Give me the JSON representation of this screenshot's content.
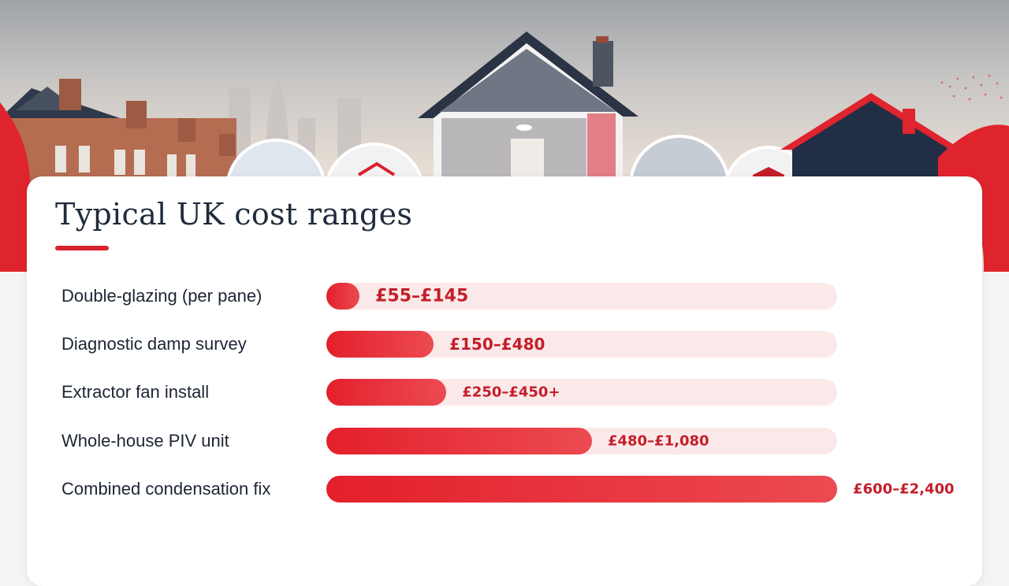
{
  "title": "Typical UK cost ranges",
  "colors": {
    "accent": "#d92230",
    "track": "#fbe9e9",
    "label_text": "#1c2533",
    "value_text": "#c41e2a"
  },
  "chart_data": {
    "type": "bar",
    "orientation": "horizontal",
    "title": "Typical UK cost ranges",
    "xlabel": "",
    "ylabel": "",
    "grid": false,
    "categories": [
      "Double-glazing (per pane)",
      "Diagnostic damp survey",
      "Extractor fan install",
      "Whole-house PIV unit",
      "Combined condensation fix"
    ],
    "value_labels": [
      "£55–£145",
      "£150–£480",
      "£250–£450+",
      "£480–£1,080",
      "£600–£2,400"
    ],
    "values": [
      0.065,
      0.21,
      0.235,
      0.52,
      1.0
    ]
  }
}
